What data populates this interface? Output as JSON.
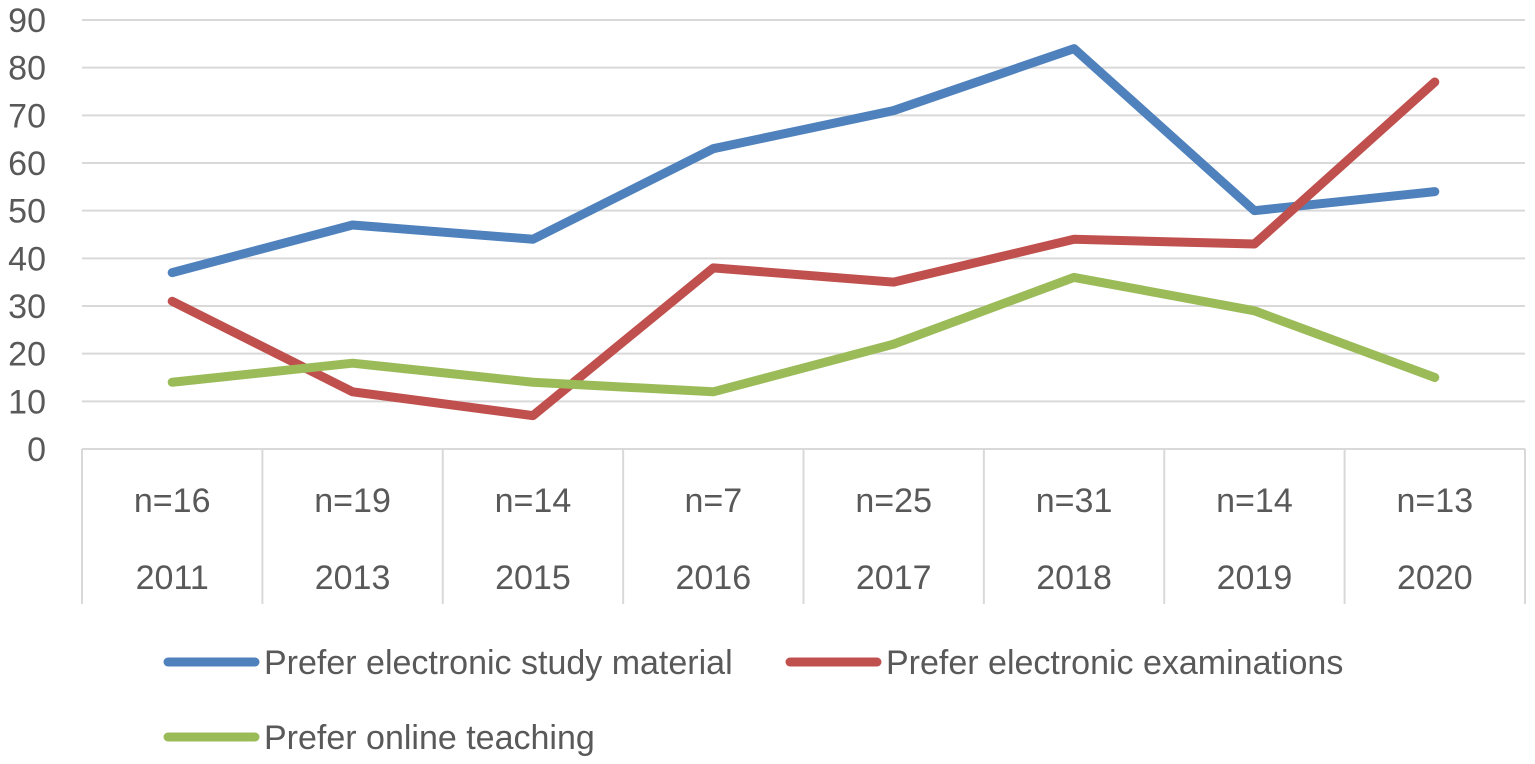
{
  "chart_data": {
    "type": "line",
    "categories": [
      {
        "n": "n=16",
        "year": "2011"
      },
      {
        "n": "n=19",
        "year": "2013"
      },
      {
        "n": "n=14",
        "year": "2015"
      },
      {
        "n": "n=7",
        "year": "2016"
      },
      {
        "n": "n=25",
        "year": "2017"
      },
      {
        "n": "n=31",
        "year": "2018"
      },
      {
        "n": "n=14",
        "year": "2019"
      },
      {
        "n": "n=13",
        "year": "2020"
      }
    ],
    "ylim": [
      0,
      90
    ],
    "yticks": [
      0,
      10,
      20,
      30,
      40,
      50,
      60,
      70,
      80,
      90
    ],
    "grid": true,
    "legend_position": "bottom",
    "series": [
      {
        "name": "Prefer electronic study material",
        "color": "#4f81bd",
        "values": [
          37,
          47,
          44,
          63,
          71,
          84,
          50,
          54
        ]
      },
      {
        "name": "Prefer electronic examinations",
        "color": "#c0504d",
        "values": [
          31,
          12,
          7,
          38,
          35,
          44,
          43,
          77
        ]
      },
      {
        "name": "Prefer online teaching",
        "color": "#9bbb59",
        "values": [
          14,
          18,
          14,
          12,
          22,
          36,
          29,
          15
        ]
      }
    ]
  }
}
